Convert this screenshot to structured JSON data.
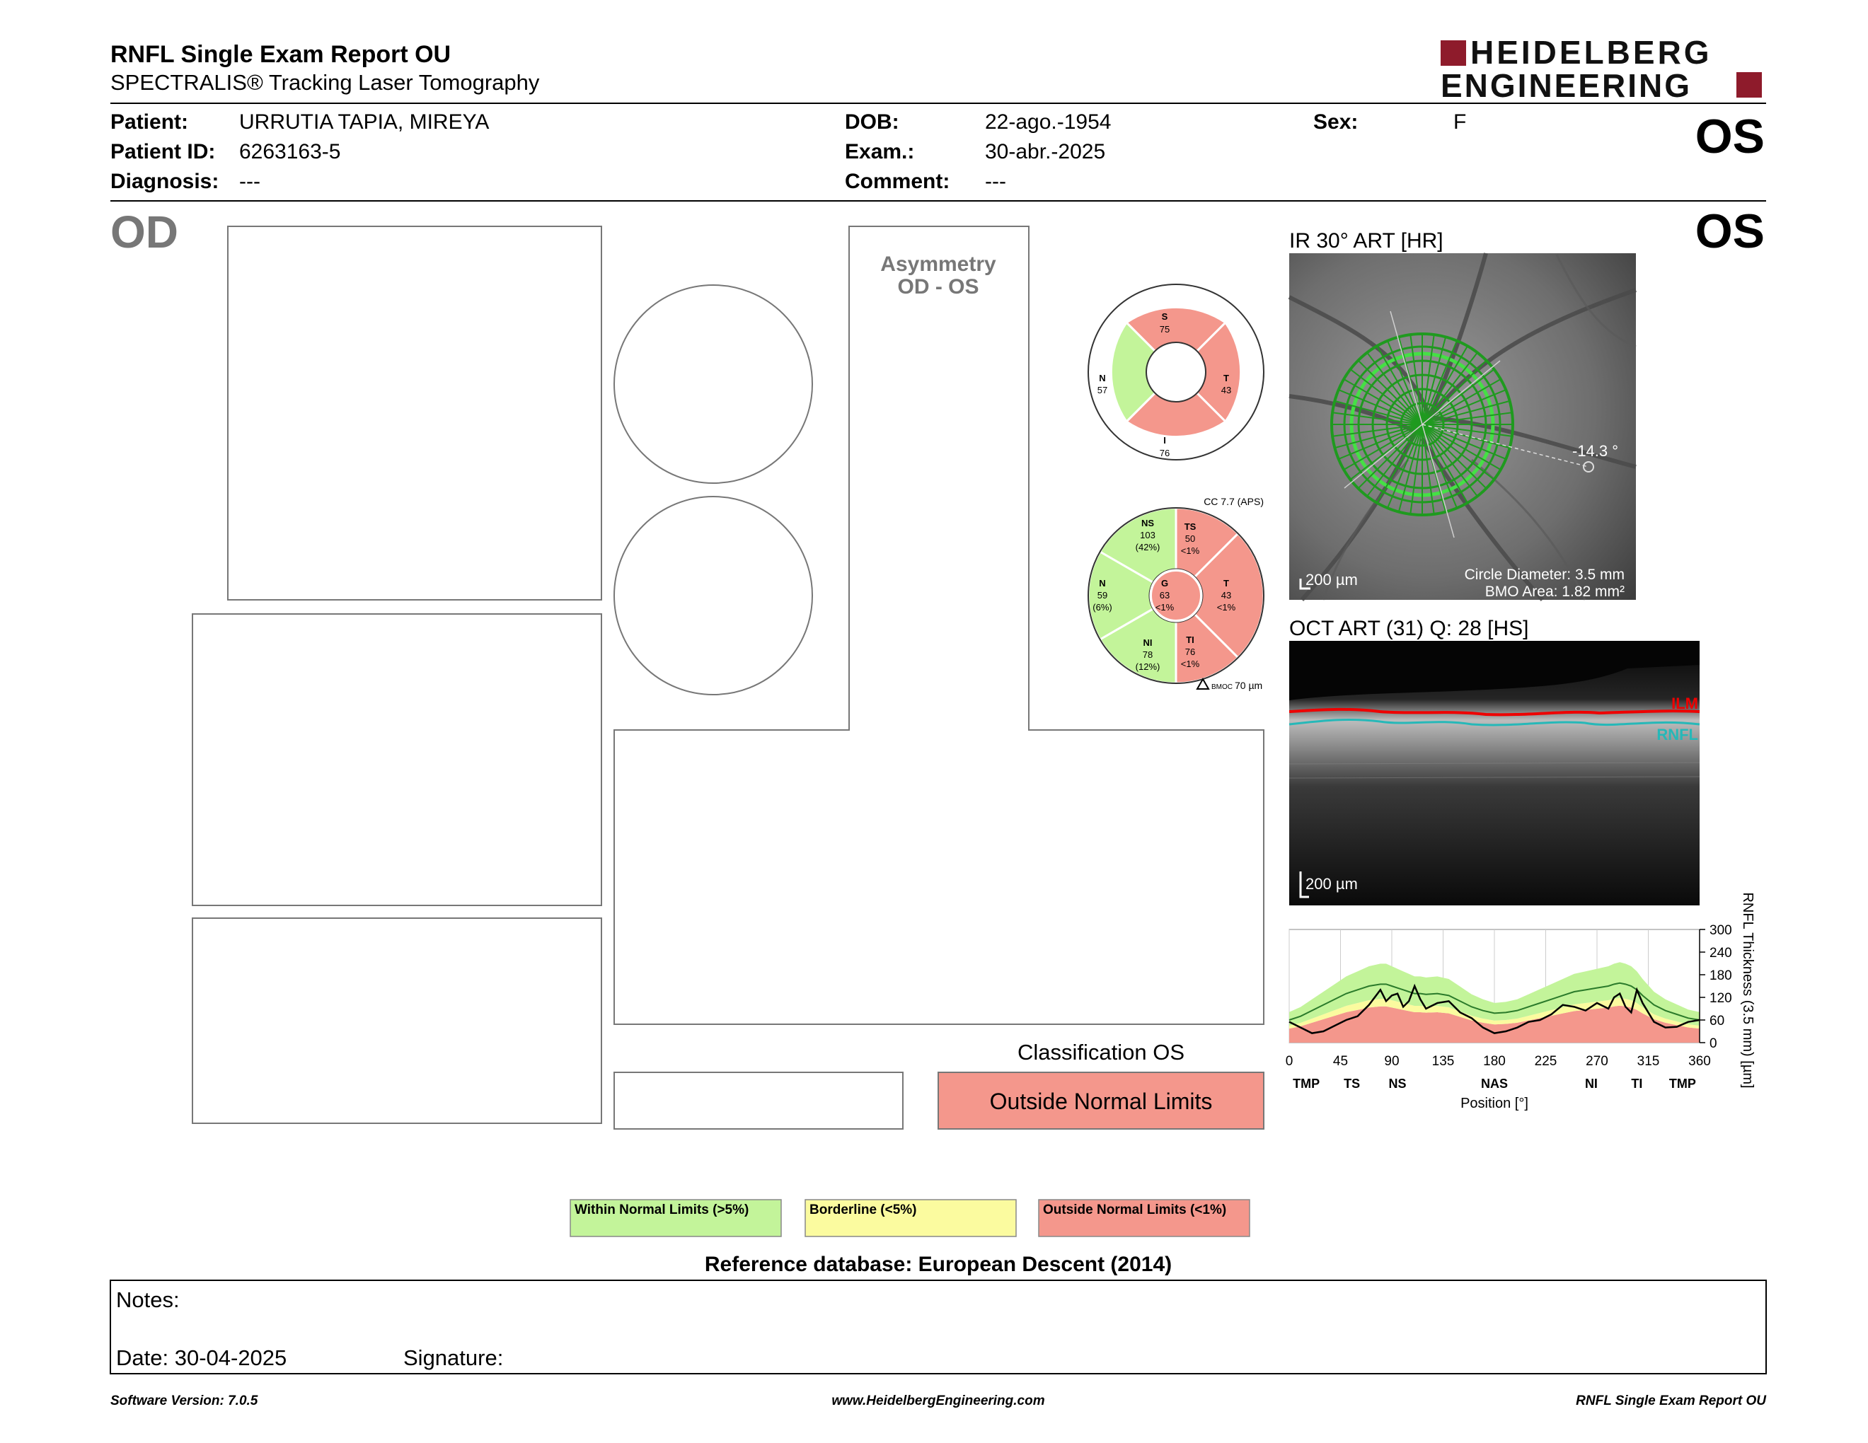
{
  "header": {
    "title": "RNFL Single Exam Report OU",
    "subtitle": "SPECTRALIS® Tracking Laser Tomography",
    "brand_line1": "HEIDELBERG",
    "brand_line2": "ENGINEERING",
    "eye_top": "OS"
  },
  "patient": {
    "patient_label": "Patient:",
    "patient_value": "URRUTIA TAPIA, MIREYA",
    "id_label": "Patient ID:",
    "id_value": "6263163-5",
    "diagnosis_label": "Diagnosis:",
    "diagnosis_value": "---",
    "dob_label": "DOB:",
    "dob_value": "22-ago.-1954",
    "exam_label": "Exam.:",
    "exam_value": "30-abr.-2025",
    "comment_label": "Comment:",
    "comment_value": "---",
    "sex_label": "Sex:",
    "sex_value": "F"
  },
  "left_eye": {
    "label": "OD"
  },
  "right_eye": {
    "label": "OS"
  },
  "asymmetry": {
    "line1": "Asymmetry",
    "line2": "OD - OS"
  },
  "sector_chart_4": {
    "S": {
      "label": "S",
      "value": "75"
    },
    "T": {
      "label": "T",
      "value": "43"
    },
    "I": {
      "label": "I",
      "value": "76"
    },
    "N": {
      "label": "N",
      "value": "57"
    }
  },
  "sector_chart_6": {
    "cc": "CC 7.7 (APS)",
    "NS": {
      "label": "NS",
      "value": "103",
      "pct": "(42%)"
    },
    "TS": {
      "label": "TS",
      "value": "50",
      "pct": "<1%"
    },
    "T": {
      "label": "T",
      "value": "43",
      "pct": "<1%"
    },
    "TI": {
      "label": "TI",
      "value": "76",
      "pct": "<1%"
    },
    "NI": {
      "label": "NI",
      "value": "78",
      "pct": "(12%)"
    },
    "N": {
      "label": "N",
      "value": "59",
      "pct": "(6%)"
    },
    "G": {
      "label": "G",
      "value": "63",
      "pct": "<1%"
    },
    "bmo_label": "BMOC",
    "bmo_value": "70 µm"
  },
  "ir_image": {
    "title": "IR 30° ART [HR]",
    "scale": "200 µm",
    "angle": "-14.3 °",
    "circle_diameter": "Circle Diameter: 3.5 mm",
    "bmo_area": "BMO Area: 1.82 mm²"
  },
  "oct_image": {
    "title": "OCT ART (31) Q: 28 [HS]",
    "ilm": "ILM",
    "rnfl": "RNFL",
    "scale": "200 µm"
  },
  "classification": {
    "title": "Classification OS",
    "result": "Outside Normal Limits",
    "result_color": "#f4978c"
  },
  "legend": {
    "within": "Within Normal Limits (>5%)",
    "borderline": "Borderline (<5%)",
    "outside": "Outside Normal Limits (<1%)",
    "colors": {
      "within": "#c3f49a",
      "borderline": "#fbfb9f",
      "outside": "#f4978c"
    }
  },
  "reference": "Reference database: European Descent (2014)",
  "notes": {
    "notes_label": "Notes:",
    "date_label": "Date: 30-04-2025",
    "signature_label": "Signature:"
  },
  "footer": {
    "version": "Software Version: 7.0.5",
    "url": "www.HeidelbergEngineering.com",
    "report": "RNFL Single Exam Report OU"
  },
  "chart_data": {
    "type": "line",
    "ylabel": "RNFL Thickness (3.5 mm) [µm]",
    "xlabel": "Position [°]",
    "xlim": [
      0,
      360
    ],
    "ylim": [
      0,
      300
    ],
    "xticks": [
      "0",
      "45",
      "90",
      "135",
      "180",
      "225",
      "270",
      "315",
      "360"
    ],
    "yticks": [
      "0",
      "60",
      "120",
      "180",
      "240",
      "300"
    ],
    "sector_labels": [
      "TMP",
      "TS",
      "NS",
      "NAS",
      "NI",
      "TI",
      "TMP"
    ],
    "sector_positions": [
      15,
      55,
      95,
      180,
      265,
      305,
      345
    ],
    "x": [
      0,
      10,
      20,
      30,
      40,
      50,
      60,
      70,
      80,
      85,
      90,
      95,
      100,
      105,
      110,
      115,
      120,
      130,
      140,
      150,
      160,
      170,
      180,
      190,
      200,
      210,
      220,
      230,
      240,
      250,
      260,
      270,
      280,
      285,
      290,
      295,
      300,
      305,
      310,
      320,
      330,
      340,
      350,
      360
    ],
    "patient": [
      55,
      40,
      25,
      30,
      45,
      60,
      70,
      100,
      140,
      110,
      125,
      130,
      95,
      110,
      150,
      115,
      90,
      105,
      110,
      80,
      65,
      40,
      25,
      30,
      40,
      55,
      60,
      75,
      100,
      95,
      85,
      105,
      90,
      120,
      130,
      95,
      80,
      140,
      105,
      55,
      40,
      42,
      55,
      60
    ],
    "normal_mean": [
      60,
      70,
      85,
      100,
      115,
      130,
      140,
      150,
      155,
      155,
      150,
      145,
      140,
      135,
      130,
      130,
      128,
      130,
      125,
      110,
      95,
      85,
      78,
      80,
      85,
      95,
      105,
      115,
      125,
      135,
      140,
      145,
      150,
      155,
      158,
      155,
      150,
      140,
      125,
      100,
      85,
      75,
      65,
      60
    ]
  }
}
